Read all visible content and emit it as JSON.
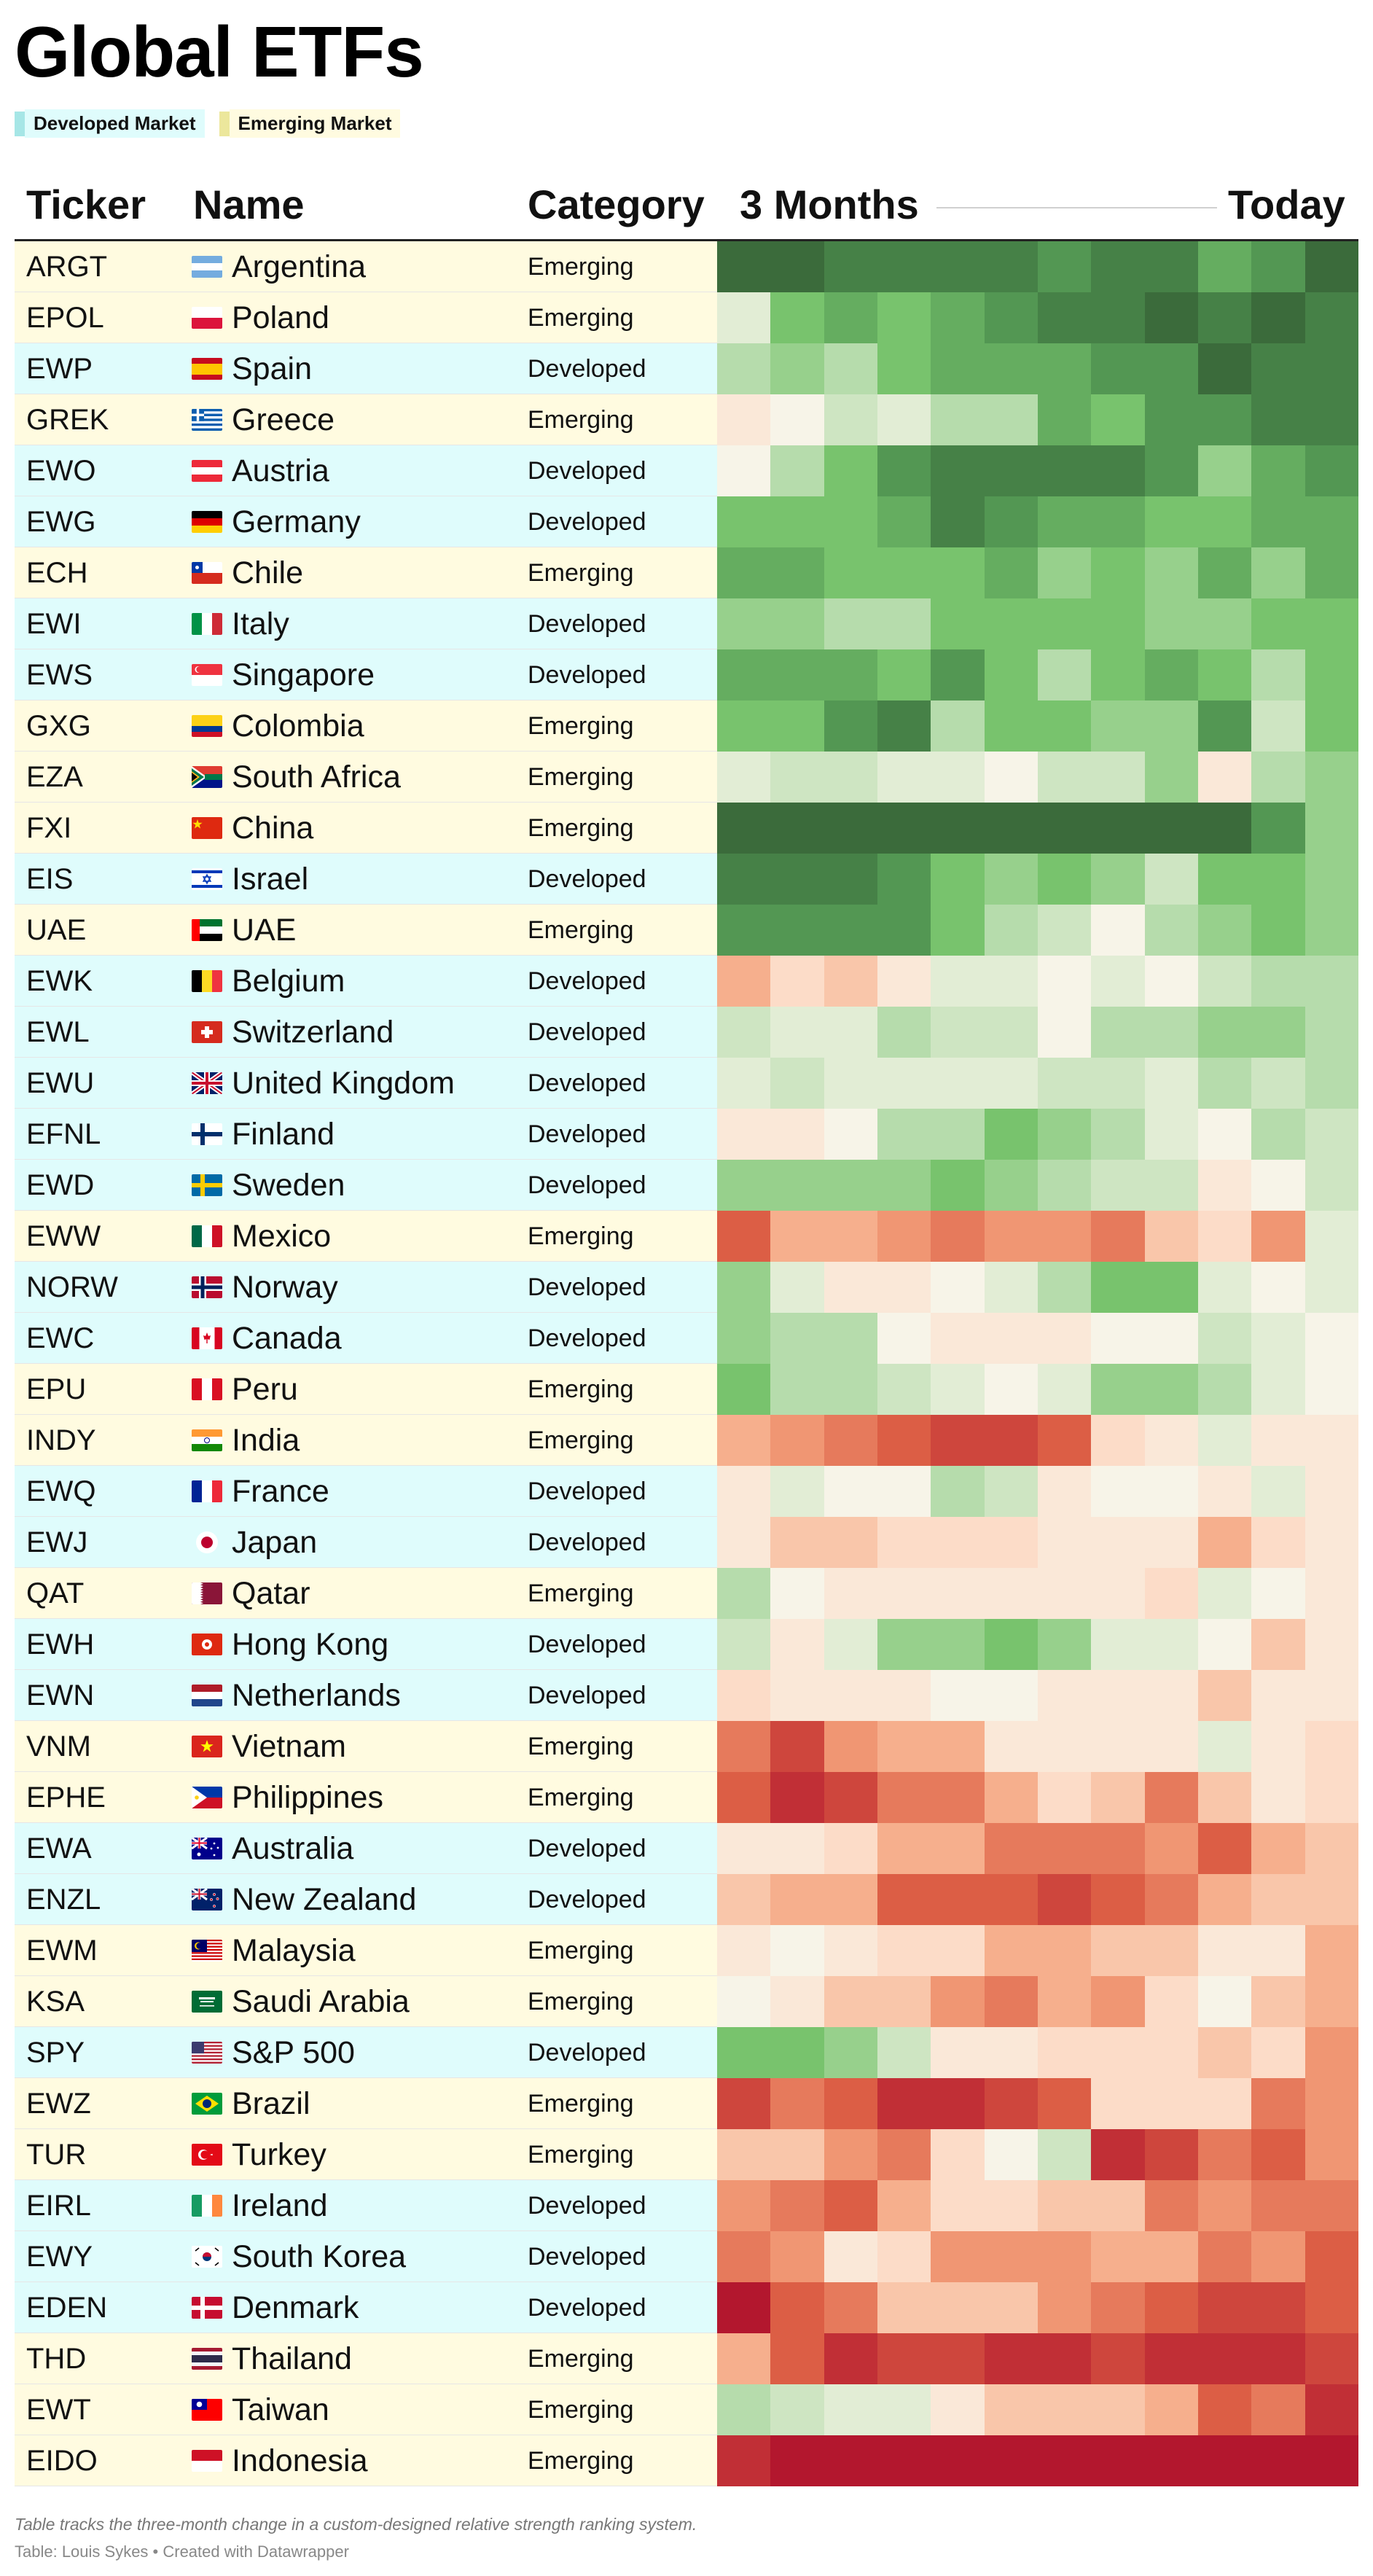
{
  "title": "Global ETFs",
  "legend": [
    {
      "label": "Developed Market",
      "color": "#dffcfc",
      "swatch": "#a6e6e6"
    },
    {
      "label": "Emerging Market",
      "color": "#fffbe0",
      "swatch": "#ece79c"
    }
  ],
  "columns": {
    "ticker": "Ticker",
    "name": "Name",
    "category": "Category",
    "start": "3 Months",
    "end": "Today"
  },
  "colors": {
    "developed_row": "#dffcfc",
    "emerging_row": "#fffbe0",
    "scale_strong_positive": "#3b6b3b",
    "scale_neutral": "#f7f4e8",
    "scale_strong_negative": "#b3172e"
  },
  "footnote": "Table tracks the three-month change in a custom-designed relative strength ranking system.",
  "source": "Table: Louis Sykes • Created with Datawrapper",
  "chart_data": {
    "type": "heatmap",
    "title": "Global ETFs",
    "x_start_label": "3 Months",
    "x_end_label": "Today",
    "color_scale": "green = strong relative strength, red = weak relative strength",
    "rows": [
      {
        "ticker": "ARGT",
        "name": "Argentina",
        "category": "Emerging",
        "flag": "argentina-flag",
        "values": [
          9,
          9,
          8,
          8,
          8,
          8,
          7,
          8,
          8,
          6,
          7,
          9
        ]
      },
      {
        "ticker": "EPOL",
        "name": "Poland",
        "category": "Emerging",
        "flag": "poland-flag",
        "values": [
          1,
          5,
          6,
          5,
          6,
          7,
          8,
          8,
          9,
          8,
          9,
          8
        ]
      },
      {
        "ticker": "EWP",
        "name": "Spain",
        "category": "Developed",
        "flag": "spain-flag",
        "values": [
          3,
          4,
          3,
          5,
          6,
          6,
          6,
          7,
          7,
          9,
          8,
          8
        ]
      },
      {
        "ticker": "GREK",
        "name": "Greece",
        "category": "Emerging",
        "flag": "greece-flag",
        "values": [
          -1,
          0,
          2,
          1,
          3,
          3,
          6,
          5,
          7,
          7,
          8,
          8
        ]
      },
      {
        "ticker": "EWO",
        "name": "Austria",
        "category": "Developed",
        "flag": "austria-flag",
        "values": [
          0,
          3,
          5,
          7,
          8,
          8,
          8,
          8,
          7,
          4,
          6,
          7
        ]
      },
      {
        "ticker": "EWG",
        "name": "Germany",
        "category": "Developed",
        "flag": "germany-flag",
        "values": [
          5,
          5,
          5,
          6,
          8,
          7,
          6,
          6,
          5,
          5,
          6,
          6
        ]
      },
      {
        "ticker": "ECH",
        "name": "Chile",
        "category": "Emerging",
        "flag": "chile-flag",
        "values": [
          6,
          6,
          5,
          5,
          5,
          6,
          4,
          5,
          4,
          6,
          4,
          6
        ]
      },
      {
        "ticker": "EWI",
        "name": "Italy",
        "category": "Developed",
        "flag": "italy-flag",
        "values": [
          4,
          4,
          3,
          3,
          5,
          5,
          5,
          5,
          4,
          4,
          5,
          5
        ]
      },
      {
        "ticker": "EWS",
        "name": "Singapore",
        "category": "Developed",
        "flag": "singapore-flag",
        "values": [
          6,
          6,
          6,
          5,
          7,
          5,
          3,
          5,
          6,
          5,
          3,
          5
        ]
      },
      {
        "ticker": "GXG",
        "name": "Colombia",
        "category": "Emerging",
        "flag": "colombia-flag",
        "values": [
          5,
          5,
          7,
          8,
          3,
          5,
          5,
          4,
          4,
          7,
          2,
          5
        ]
      },
      {
        "ticker": "EZA",
        "name": "South Africa",
        "category": "Emerging",
        "flag": "south-africa-flag",
        "values": [
          1,
          2,
          2,
          1,
          1,
          0,
          2,
          2,
          4,
          -1,
          3,
          4
        ]
      },
      {
        "ticker": "FXI",
        "name": "China",
        "category": "Emerging",
        "flag": "china-flag",
        "values": [
          9,
          9,
          9,
          9,
          9,
          9,
          9,
          9,
          9,
          9,
          7,
          4
        ]
      },
      {
        "ticker": "EIS",
        "name": "Israel",
        "category": "Developed",
        "flag": "israel-flag",
        "values": [
          8,
          8,
          8,
          7,
          5,
          4,
          5,
          4,
          2,
          5,
          5,
          4
        ]
      },
      {
        "ticker": "UAE",
        "name": "UAE",
        "category": "Emerging",
        "flag": "uae-flag",
        "values": [
          7,
          7,
          7,
          7,
          5,
          3,
          2,
          0,
          3,
          4,
          5,
          4
        ]
      },
      {
        "ticker": "EWK",
        "name": "Belgium",
        "category": "Developed",
        "flag": "belgium-flag",
        "values": [
          -4,
          -2,
          -3,
          -1,
          1,
          1,
          0,
          1,
          0,
          2,
          3,
          3
        ]
      },
      {
        "ticker": "EWL",
        "name": "Switzerland",
        "category": "Developed",
        "flag": "switzerland-flag",
        "values": [
          2,
          1,
          1,
          3,
          2,
          2,
          0,
          3,
          3,
          4,
          4,
          3
        ]
      },
      {
        "ticker": "EWU",
        "name": "United Kingdom",
        "category": "Developed",
        "flag": "united-kingdom-flag",
        "values": [
          1,
          2,
          1,
          1,
          1,
          1,
          2,
          2,
          1,
          3,
          2,
          3
        ]
      },
      {
        "ticker": "EFNL",
        "name": "Finland",
        "category": "Developed",
        "flag": "finland-flag",
        "values": [
          -1,
          -1,
          0,
          3,
          3,
          5,
          4,
          3,
          1,
          0,
          3,
          2
        ]
      },
      {
        "ticker": "EWD",
        "name": "Sweden",
        "category": "Developed",
        "flag": "sweden-flag",
        "values": [
          4,
          4,
          4,
          4,
          5,
          4,
          3,
          2,
          2,
          -1,
          0,
          2
        ]
      },
      {
        "ticker": "EWW",
        "name": "Mexico",
        "category": "Emerging",
        "flag": "mexico-flag",
        "values": [
          -7,
          -4,
          -4,
          -5,
          -6,
          -5,
          -5,
          -6,
          -3,
          -2,
          -5,
          1
        ]
      },
      {
        "ticker": "NORW",
        "name": "Norway",
        "category": "Developed",
        "flag": "norway-flag",
        "values": [
          4,
          1,
          -1,
          -1,
          0,
          1,
          3,
          5,
          5,
          1,
          0,
          1
        ]
      },
      {
        "ticker": "EWC",
        "name": "Canada",
        "category": "Developed",
        "flag": "canada-flag",
        "values": [
          4,
          3,
          3,
          0,
          -1,
          -1,
          -1,
          0,
          0,
          2,
          1,
          0
        ]
      },
      {
        "ticker": "EPU",
        "name": "Peru",
        "category": "Emerging",
        "flag": "peru-flag",
        "values": [
          5,
          3,
          3,
          2,
          1,
          0,
          1,
          4,
          4,
          3,
          1,
          0
        ]
      },
      {
        "ticker": "INDY",
        "name": "India",
        "category": "Emerging",
        "flag": "india-flag",
        "values": [
          -4,
          -5,
          -6,
          -7,
          -8,
          -8,
          -7,
          -2,
          -1,
          1,
          -1,
          -1
        ]
      },
      {
        "ticker": "EWQ",
        "name": "France",
        "category": "Developed",
        "flag": "france-flag",
        "values": [
          -1,
          1,
          0,
          0,
          3,
          2,
          -1,
          0,
          0,
          -1,
          1,
          -1
        ]
      },
      {
        "ticker": "EWJ",
        "name": "Japan",
        "category": "Developed",
        "flag": "japan-flag",
        "values": [
          -1,
          -3,
          -3,
          -2,
          -2,
          -2,
          -1,
          -1,
          -1,
          -4,
          -2,
          -1
        ]
      },
      {
        "ticker": "QAT",
        "name": "Qatar",
        "category": "Emerging",
        "flag": "qatar-flag",
        "values": [
          3,
          0,
          -1,
          -1,
          -1,
          -1,
          -1,
          -1,
          -2,
          1,
          0,
          -1
        ]
      },
      {
        "ticker": "EWH",
        "name": "Hong Kong",
        "category": "Developed",
        "flag": "hong-kong-flag",
        "values": [
          2,
          -1,
          1,
          4,
          4,
          5,
          4,
          1,
          1,
          0,
          -3,
          -1
        ]
      },
      {
        "ticker": "EWN",
        "name": "Netherlands",
        "category": "Developed",
        "flag": "netherlands-flag",
        "values": [
          -2,
          -1,
          -1,
          -1,
          0,
          0,
          -1,
          -1,
          -1,
          -3,
          -1,
          -1
        ]
      },
      {
        "ticker": "VNM",
        "name": "Vietnam",
        "category": "Emerging",
        "flag": "vietnam-flag",
        "values": [
          -6,
          -8,
          -5,
          -4,
          -4,
          -1,
          -1,
          -1,
          -1,
          1,
          -1,
          -2
        ]
      },
      {
        "ticker": "EPHE",
        "name": "Philippines",
        "category": "Emerging",
        "flag": "philippines-flag",
        "values": [
          -7,
          -9,
          -8,
          -6,
          -6,
          -4,
          -2,
          -3,
          -6,
          -3,
          -1,
          -2
        ]
      },
      {
        "ticker": "EWA",
        "name": "Australia",
        "category": "Developed",
        "flag": "australia-flag",
        "values": [
          -1,
          -1,
          -2,
          -4,
          -4,
          -6,
          -6,
          -6,
          -5,
          -7,
          -4,
          -3
        ]
      },
      {
        "ticker": "ENZL",
        "name": "New Zealand",
        "category": "Developed",
        "flag": "new-zealand-flag",
        "values": [
          -3,
          -4,
          -4,
          -7,
          -7,
          -7,
          -8,
          -7,
          -6,
          -4,
          -3,
          -3
        ]
      },
      {
        "ticker": "EWM",
        "name": "Malaysia",
        "category": "Emerging",
        "flag": "malaysia-flag",
        "values": [
          -1,
          0,
          -1,
          -2,
          -2,
          -4,
          -4,
          -3,
          -3,
          -1,
          -1,
          -4
        ]
      },
      {
        "ticker": "KSA",
        "name": "Saudi Arabia",
        "category": "Emerging",
        "flag": "saudi-arabia-flag",
        "values": [
          0,
          -1,
          -3,
          -3,
          -5,
          -6,
          -4,
          -5,
          -2,
          0,
          -3,
          -4
        ]
      },
      {
        "ticker": "SPY",
        "name": "S&P 500",
        "category": "Developed",
        "flag": "united-states-flag",
        "values": [
          5,
          5,
          4,
          2,
          -1,
          -1,
          -2,
          -2,
          -2,
          -3,
          -2,
          -5
        ]
      },
      {
        "ticker": "EWZ",
        "name": "Brazil",
        "category": "Emerging",
        "flag": "brazil-flag",
        "values": [
          -8,
          -6,
          -7,
          -9,
          -9,
          -8,
          -7,
          -2,
          -2,
          -2,
          -6,
          -5
        ]
      },
      {
        "ticker": "TUR",
        "name": "Turkey",
        "category": "Emerging",
        "flag": "turkey-flag",
        "values": [
          -3,
          -3,
          -5,
          -6,
          -2,
          0,
          2,
          -9,
          -8,
          -6,
          -7,
          -5
        ]
      },
      {
        "ticker": "EIRL",
        "name": "Ireland",
        "category": "Developed",
        "flag": "ireland-flag",
        "values": [
          -5,
          -6,
          -7,
          -4,
          -2,
          -2,
          -3,
          -3,
          -6,
          -5,
          -6,
          -6
        ]
      },
      {
        "ticker": "EWY",
        "name": "South Korea",
        "category": "Developed",
        "flag": "south-korea-flag",
        "values": [
          -6,
          -5,
          -1,
          -2,
          -5,
          -5,
          -5,
          -4,
          -4,
          -6,
          -5,
          -7
        ]
      },
      {
        "ticker": "EDEN",
        "name": "Denmark",
        "category": "Developed",
        "flag": "denmark-flag",
        "values": [
          -10,
          -7,
          -6,
          -3,
          -3,
          -3,
          -5,
          -6,
          -7,
          -8,
          -8,
          -7
        ]
      },
      {
        "ticker": "THD",
        "name": "Thailand",
        "category": "Emerging",
        "flag": "thailand-flag",
        "values": [
          -4,
          -7,
          -9,
          -8,
          -8,
          -9,
          -9,
          -8,
          -9,
          -9,
          -9,
          -8
        ]
      },
      {
        "ticker": "EWT",
        "name": "Taiwan",
        "category": "Emerging",
        "flag": "taiwan-flag",
        "values": [
          3,
          2,
          1,
          1,
          -1,
          -3,
          -3,
          -3,
          -4,
          -7,
          -6,
          -9
        ]
      },
      {
        "ticker": "EIDO",
        "name": "Indonesia",
        "category": "Emerging",
        "flag": "indonesia-flag",
        "values": [
          -9,
          -10,
          -10,
          -10,
          -10,
          -10,
          -10,
          -10,
          -10,
          -10,
          -10,
          -10
        ]
      }
    ]
  }
}
